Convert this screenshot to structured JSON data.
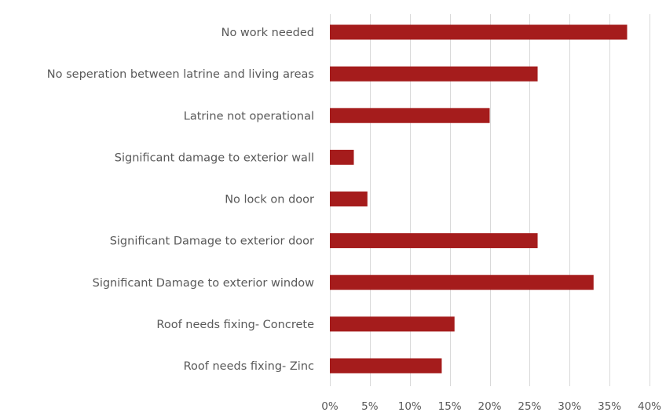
{
  "chart_data": {
    "type": "bar",
    "orientation": "horizontal",
    "title": "",
    "xlabel": "",
    "ylabel": "",
    "categories": [
      "No work needed",
      "No seperation between latrine and living areas",
      "Latrine not operational",
      "Significant damage to exterior wall",
      "No lock on door",
      "Significant Damage to exterior door",
      "Significant Damage to exterior window",
      "Roof needs fixing- Concrete",
      "Roof needs fixing- Zinc"
    ],
    "values": [
      37.2,
      26.0,
      20.0,
      3.0,
      4.7,
      26.0,
      33.0,
      15.6,
      14.0
    ],
    "xlim": [
      0,
      40
    ],
    "ticks": [
      0,
      5,
      10,
      15,
      20,
      25,
      30,
      35,
      40
    ],
    "tick_labels": [
      "0%",
      "5%",
      "10%",
      "15%",
      "20%",
      "25%",
      "30%",
      "35%",
      "40%"
    ],
    "grid": true,
    "legend": "none",
    "colors": {
      "bar": "#a51c1c",
      "grid": "#d9d9d9",
      "text": "#595959"
    }
  }
}
